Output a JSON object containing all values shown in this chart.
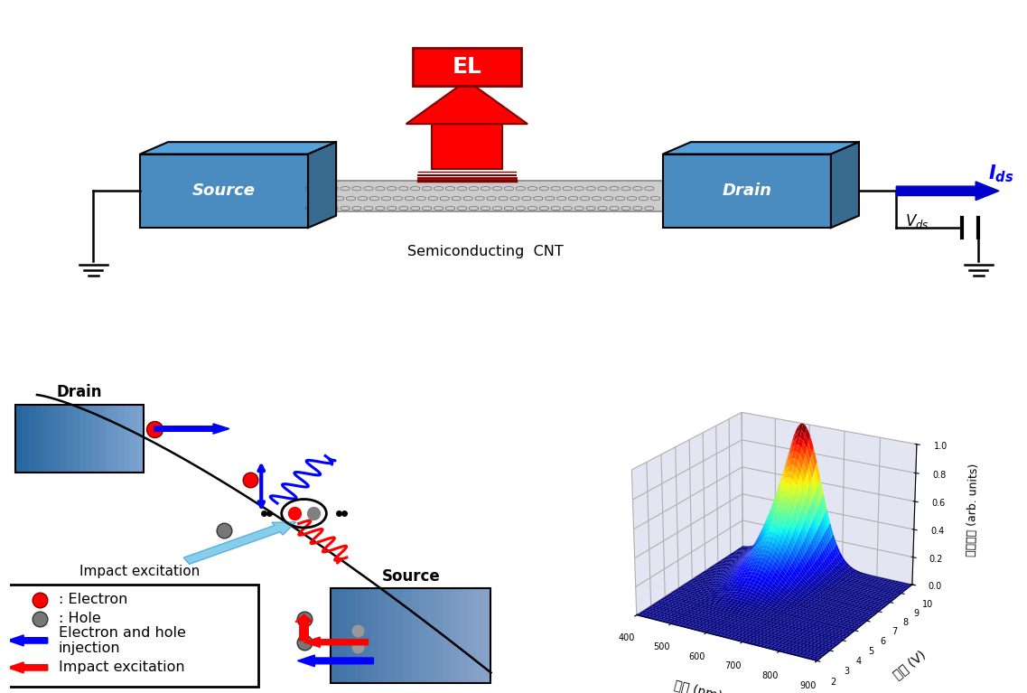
{
  "el_label": "EL",
  "source_label": "Source",
  "drain_label": "Drain",
  "cnt_label": "Semiconducting  CNT",
  "ids_label": "$\\bfit{I}_{ds}$",
  "vds_label": "$V_{ds}$",
  "ylabel_3d": "発光強度 (arb. units)",
  "xlabel_3d": "波長 (nm)",
  "zlabel_3d": "電圧 (V)",
  "legend_electron": ": Electron",
  "legend_hole": ": Hole",
  "legend_blue": "Electron and hole\ninjection",
  "legend_red": "Impact excitation",
  "impact_label": "Impact excitation",
  "drain_label2": "Drain",
  "source_label2": "Source",
  "bg_color": "#ffffff",
  "blue_box": "#4a8cbf",
  "blue_light": "#7ab0d4",
  "blue_dark": "#2b6091"
}
